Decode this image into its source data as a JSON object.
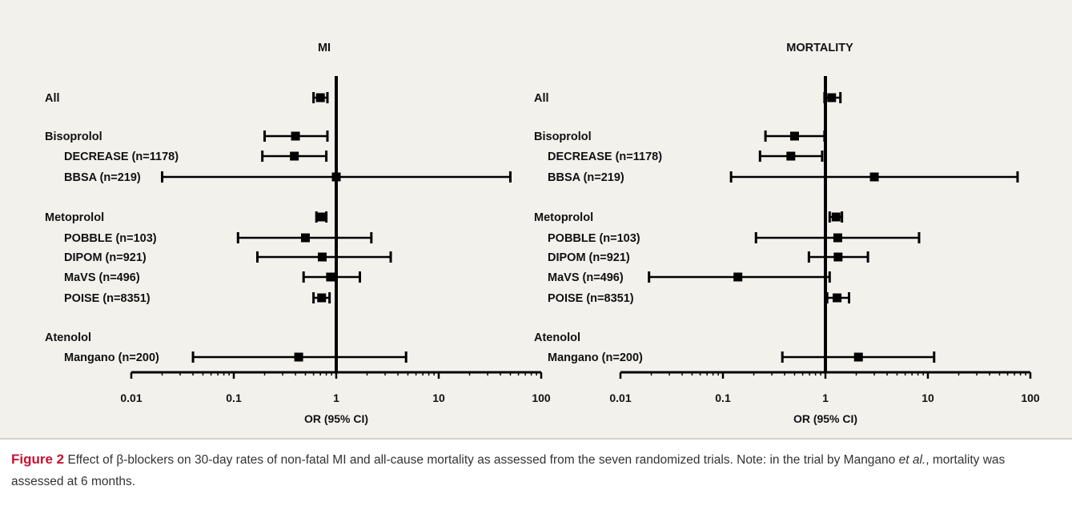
{
  "chart_data": [
    {
      "type": "forest",
      "title": "MI",
      "xlabel": "OR (95% CI)",
      "xscale": "log",
      "xlim": [
        0.01,
        100
      ],
      "xticks": [
        "0.01",
        "0.1",
        "1",
        "10",
        "100"
      ],
      "reference_line": 1,
      "rows": [
        {
          "label": "All",
          "group_header": true,
          "or": 0.7,
          "lo": 0.6,
          "hi": 0.82
        },
        {
          "label": "Bisoprolol",
          "group_header": true,
          "or": 0.4,
          "lo": 0.2,
          "hi": 0.82
        },
        {
          "label": "DECREASE (n=1178)",
          "group_header": false,
          "or": 0.39,
          "lo": 0.19,
          "hi": 0.8
        },
        {
          "label": "BBSA (n=219)",
          "group_header": false,
          "or": 1.0,
          "lo": 0.02,
          "hi": 50
        },
        {
          "label": "Metoprolol",
          "group_header": true,
          "or": 0.72,
          "lo": 0.64,
          "hi": 0.8
        },
        {
          "label": "POBBLE (n=103)",
          "group_header": false,
          "or": 0.5,
          "lo": 0.11,
          "hi": 2.2
        },
        {
          "label": "DIPOM (n=921)",
          "group_header": false,
          "or": 0.73,
          "lo": 0.17,
          "hi": 3.4
        },
        {
          "label": "MaVS (n=496)",
          "group_header": false,
          "or": 0.88,
          "lo": 0.48,
          "hi": 1.7
        },
        {
          "label": "POISE (n=8351)",
          "group_header": false,
          "or": 0.72,
          "lo": 0.6,
          "hi": 0.86
        },
        {
          "label": "Atenolol",
          "group_header": true,
          "or": null,
          "lo": null,
          "hi": null
        },
        {
          "label": "Mangano (n=200)",
          "group_header": false,
          "or": 0.43,
          "lo": 0.04,
          "hi": 4.8
        }
      ]
    },
    {
      "type": "forest",
      "title": "MORTALITY",
      "xlabel": "OR (95% CI)",
      "xscale": "log",
      "xlim": [
        0.01,
        100
      ],
      "xticks": [
        "0.01",
        "0.1",
        "1",
        "10",
        "100"
      ],
      "reference_line": 1,
      "rows": [
        {
          "label": "All",
          "group_header": true,
          "or": 1.15,
          "lo": 0.98,
          "hi": 1.4
        },
        {
          "label": "Bisoprolol",
          "group_header": true,
          "or": 0.5,
          "lo": 0.26,
          "hi": 0.98
        },
        {
          "label": "DECREASE (n=1178)",
          "group_header": false,
          "or": 0.46,
          "lo": 0.23,
          "hi": 0.93
        },
        {
          "label": "BBSA (n=219)",
          "group_header": false,
          "or": 3.0,
          "lo": 0.12,
          "hi": 75
        },
        {
          "label": "Metoprolol",
          "group_header": true,
          "or": 1.27,
          "lo": 1.1,
          "hi": 1.45
        },
        {
          "label": "POBBLE (n=103)",
          "group_header": false,
          "or": 1.32,
          "lo": 0.21,
          "hi": 8.2
        },
        {
          "label": "DIPOM (n=921)",
          "group_header": false,
          "or": 1.33,
          "lo": 0.69,
          "hi": 2.6
        },
        {
          "label": "MaVS (n=496)",
          "group_header": false,
          "or": 0.14,
          "lo": 0.019,
          "hi": 1.1
        },
        {
          "label": "POISE (n=8351)",
          "group_header": false,
          "or": 1.3,
          "lo": 1.04,
          "hi": 1.7
        },
        {
          "label": "Atenolol",
          "group_header": true,
          "or": null,
          "lo": null,
          "hi": null
        },
        {
          "label": "Mangano (n=200)",
          "group_header": false,
          "or": 2.1,
          "lo": 0.38,
          "hi": 11.5
        }
      ]
    }
  ],
  "caption": {
    "label": "Figure 2",
    "text_part1": "Effect of β-blockers on 30-day rates of non-fatal MI and all-cause mortality as assessed from the seven randomized trials. Note: in the trial by Mangano ",
    "text_italic": "et al.",
    "text_part2": ", mortality was assessed at 6 months."
  }
}
